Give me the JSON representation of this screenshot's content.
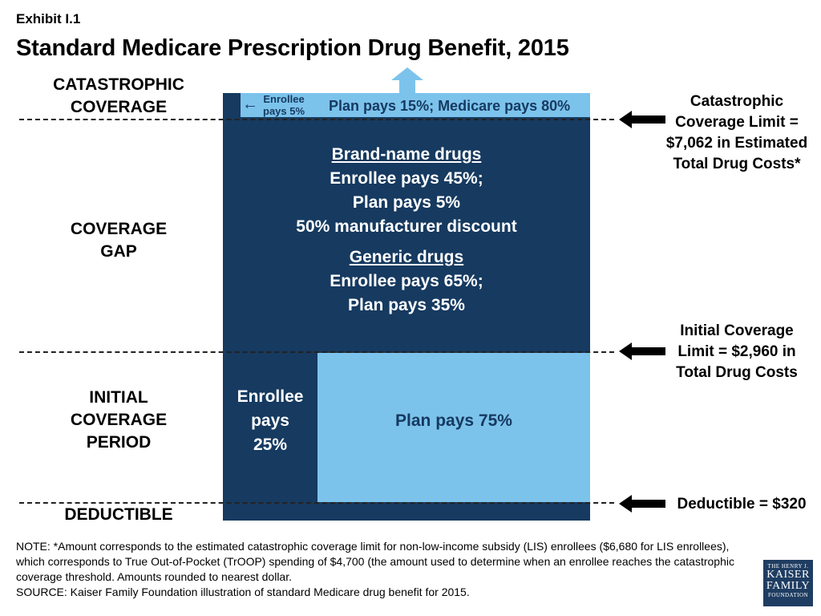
{
  "header": {
    "exhibit": "Exhibit I.1",
    "title": "Standard Medicare Prescription Drug Benefit, 2015"
  },
  "stages": {
    "catastrophic": [
      "CATASTROPHIC",
      "COVERAGE"
    ],
    "gap": [
      "COVERAGE",
      "GAP"
    ],
    "initial": [
      "INITIAL",
      "COVERAGE",
      "PERIOD"
    ],
    "deductible": "DEDUCTIBLE"
  },
  "catastrophic_bar": {
    "enrollee_arrow": "←",
    "enrollee": [
      "Enrollee",
      "pays 5%"
    ],
    "plan_medicare": "Plan pays 15%; Medicare pays 80%"
  },
  "coverage_gap": {
    "brand_heading": "Brand-name drugs",
    "brand_lines": [
      "Enrollee pays 45%;",
      "Plan pays 5%",
      "50% manufacturer discount"
    ],
    "generic_heading": "Generic drugs",
    "generic_lines": [
      "Enrollee pays 65%;",
      "Plan pays 35%"
    ]
  },
  "initial_coverage": {
    "enrollee": [
      "Enrollee",
      "pays",
      "25%"
    ],
    "plan": "Plan pays 75%"
  },
  "limits": {
    "catastrophic": [
      "Catastrophic",
      "Coverage Limit =",
      "$7,062 in Estimated",
      "Total Drug Costs*"
    ],
    "initial": [
      "Initial Coverage",
      "Limit = $2,960 in",
      "Total Drug Costs"
    ],
    "deductible": "Deductible = $320"
  },
  "note": "NOTE: *Amount corresponds to the estimated catastrophic coverage limit for non-low-income subsidy (LIS) enrollees ($6,680 for LIS enrollees), which corresponds to True Out-of-Pocket (TrOOP) spending of $4,700 (the amount used to determine when an enrollee reaches the catastrophic coverage threshold. Amounts rounded to nearest dollar.",
  "source": "SOURCE:  Kaiser Family Foundation illustration of standard Medicare drug benefit for 2015.",
  "logo": [
    "THE HENRY J.",
    "KAISER",
    "FAMILY",
    "FOUNDATION"
  ],
  "colors": {
    "navy": "#163a60",
    "light_blue": "#7cc3ec",
    "arrow": "#000000"
  }
}
